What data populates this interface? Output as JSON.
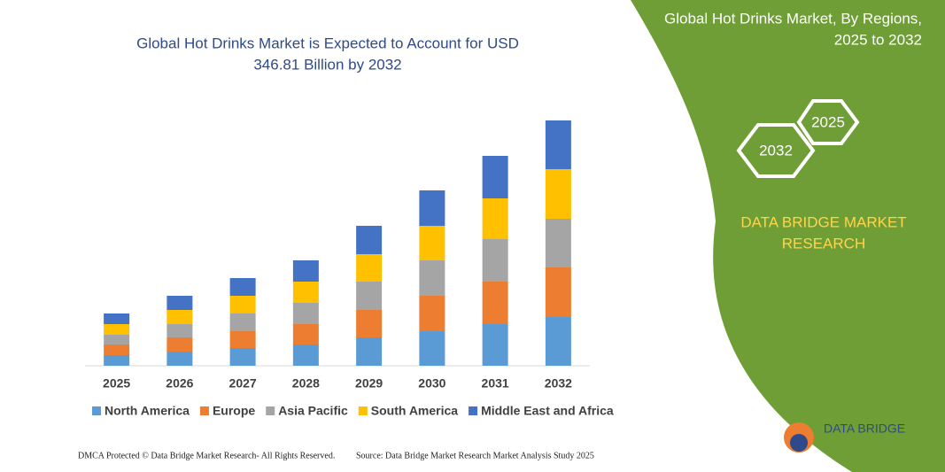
{
  "chart_data": {
    "type": "bar",
    "stacked": true,
    "title": "Global Hot Drinks Market is Expected to Account for USD",
    "subtitle": "346.81 Billion by 2032",
    "categories": [
      "2025",
      "2026",
      "2027",
      "2028",
      "2029",
      "2030",
      "2031",
      "2032"
    ],
    "series": [
      {
        "name": "North America",
        "color": "#5b9bd5",
        "values": [
          12,
          16,
          20,
          24,
          32,
          39,
          47,
          55
        ]
      },
      {
        "name": "Europe",
        "color": "#ed7d31",
        "values": [
          12,
          16,
          19,
          23,
          31,
          40,
          48,
          56
        ]
      },
      {
        "name": "Asia Pacific",
        "color": "#a5a5a5",
        "values": [
          11,
          15,
          20,
          24,
          32,
          40,
          48,
          55
        ]
      },
      {
        "name": "South America",
        "color": "#ffc000",
        "values": [
          12,
          16,
          20,
          24,
          31,
          39,
          46,
          56
        ]
      },
      {
        "name": "Middle East and Africa",
        "color": "#4472c4",
        "values": [
          12,
          16,
          20,
          24,
          32,
          40,
          48,
          55
        ]
      }
    ],
    "ylim": [
      0,
      280
    ]
  },
  "panel": {
    "title_line1": "Global Hot Drinks Market, By Regions,",
    "title_line2": "2025 to 2032",
    "hex_left": "2032",
    "hex_right": "2025",
    "brand_line1": "DATA BRIDGE MARKET",
    "brand_line2": "RESEARCH",
    "logo": "DATA BRIDGE"
  },
  "footer": {
    "left": "DMCA Protected © Data Bridge Market Research-  All Rights Reserved.",
    "right": "Source: Data Bridge Market Research  Market Analysis Study 2025"
  }
}
